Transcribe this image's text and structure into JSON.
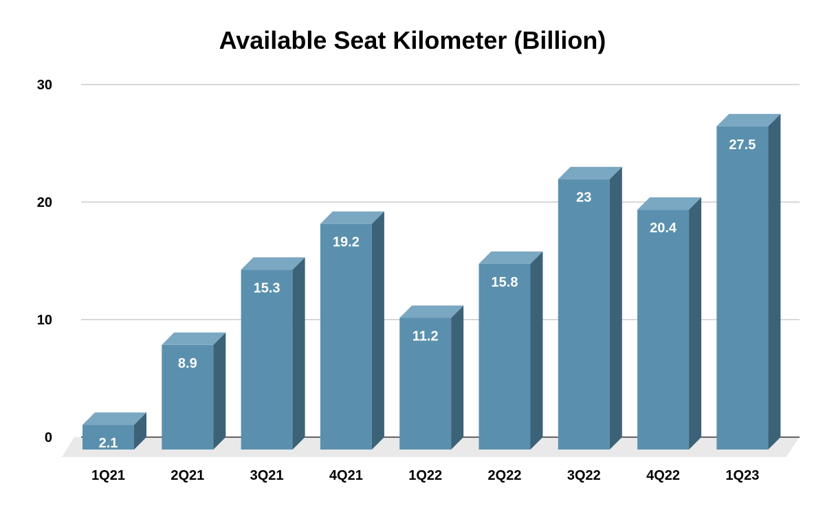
{
  "chart_data": {
    "type": "bar",
    "title": "Available Seat Kilometer (Billion)",
    "xlabel": "",
    "ylabel": "",
    "categories": [
      "1Q21",
      "2Q21",
      "3Q21",
      "4Q21",
      "1Q22",
      "2Q22",
      "3Q22",
      "4Q22",
      "1Q23"
    ],
    "values": [
      2.1,
      8.9,
      15.3,
      19.2,
      11.2,
      15.8,
      23,
      20.4,
      27.5
    ],
    "data_labels": [
      "2.1",
      "8.9",
      "15.3",
      "19.2",
      "11.2",
      "15.8",
      "23",
      "20.4",
      "27.5"
    ],
    "ylim": [
      0,
      30
    ],
    "yticks": [
      0,
      10,
      20,
      30
    ],
    "grid": true,
    "legend": "none",
    "style": "3d-columns"
  },
  "colors": {
    "bar_front": "#5a90ae",
    "bar_top": "#7aa7c1",
    "bar_side": "#3c6278",
    "floor": "#e9e9e9",
    "grid": "#cccccc",
    "baseline": "#333333"
  }
}
